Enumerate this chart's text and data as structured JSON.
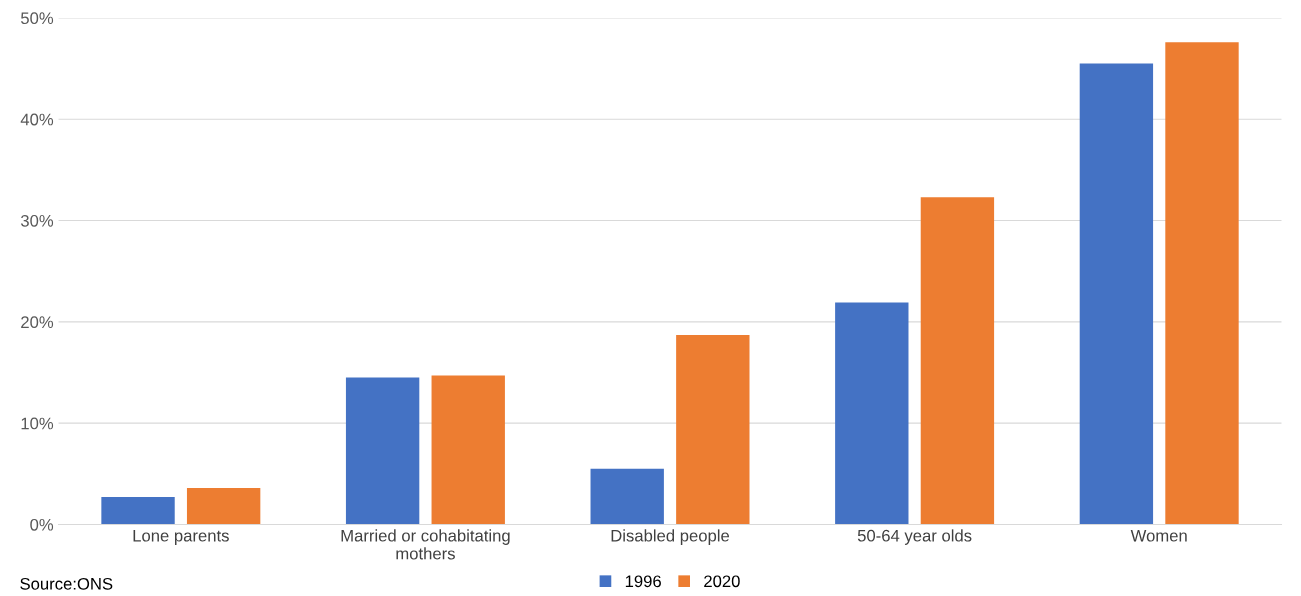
{
  "chart_data": {
    "type": "bar",
    "categories": [
      "Lone parents",
      "Married or cohabitating\nmothers",
      "Disabled people",
      "50-64 year olds",
      "Women"
    ],
    "series": [
      {
        "name": "1996",
        "color": "#4472c4",
        "values": [
          2.7,
          14.5,
          5.5,
          21.9,
          45.5
        ]
      },
      {
        "name": "2020",
        "color": "#ed7d31",
        "values": [
          3.6,
          14.7,
          18.7,
          32.3,
          47.6
        ]
      }
    ],
    "ylim": [
      0,
      50
    ],
    "yticks": [
      {
        "value": 0,
        "label": "0%"
      },
      {
        "value": 10,
        "label": "10%"
      },
      {
        "value": 20,
        "label": "20%"
      },
      {
        "value": 30,
        "label": "30%"
      },
      {
        "value": 40,
        "label": "40%"
      },
      {
        "value": 50,
        "label": "50%"
      }
    ],
    "grid": "y",
    "legend": "bottom",
    "annotations": [
      "Source:ONS"
    ]
  }
}
